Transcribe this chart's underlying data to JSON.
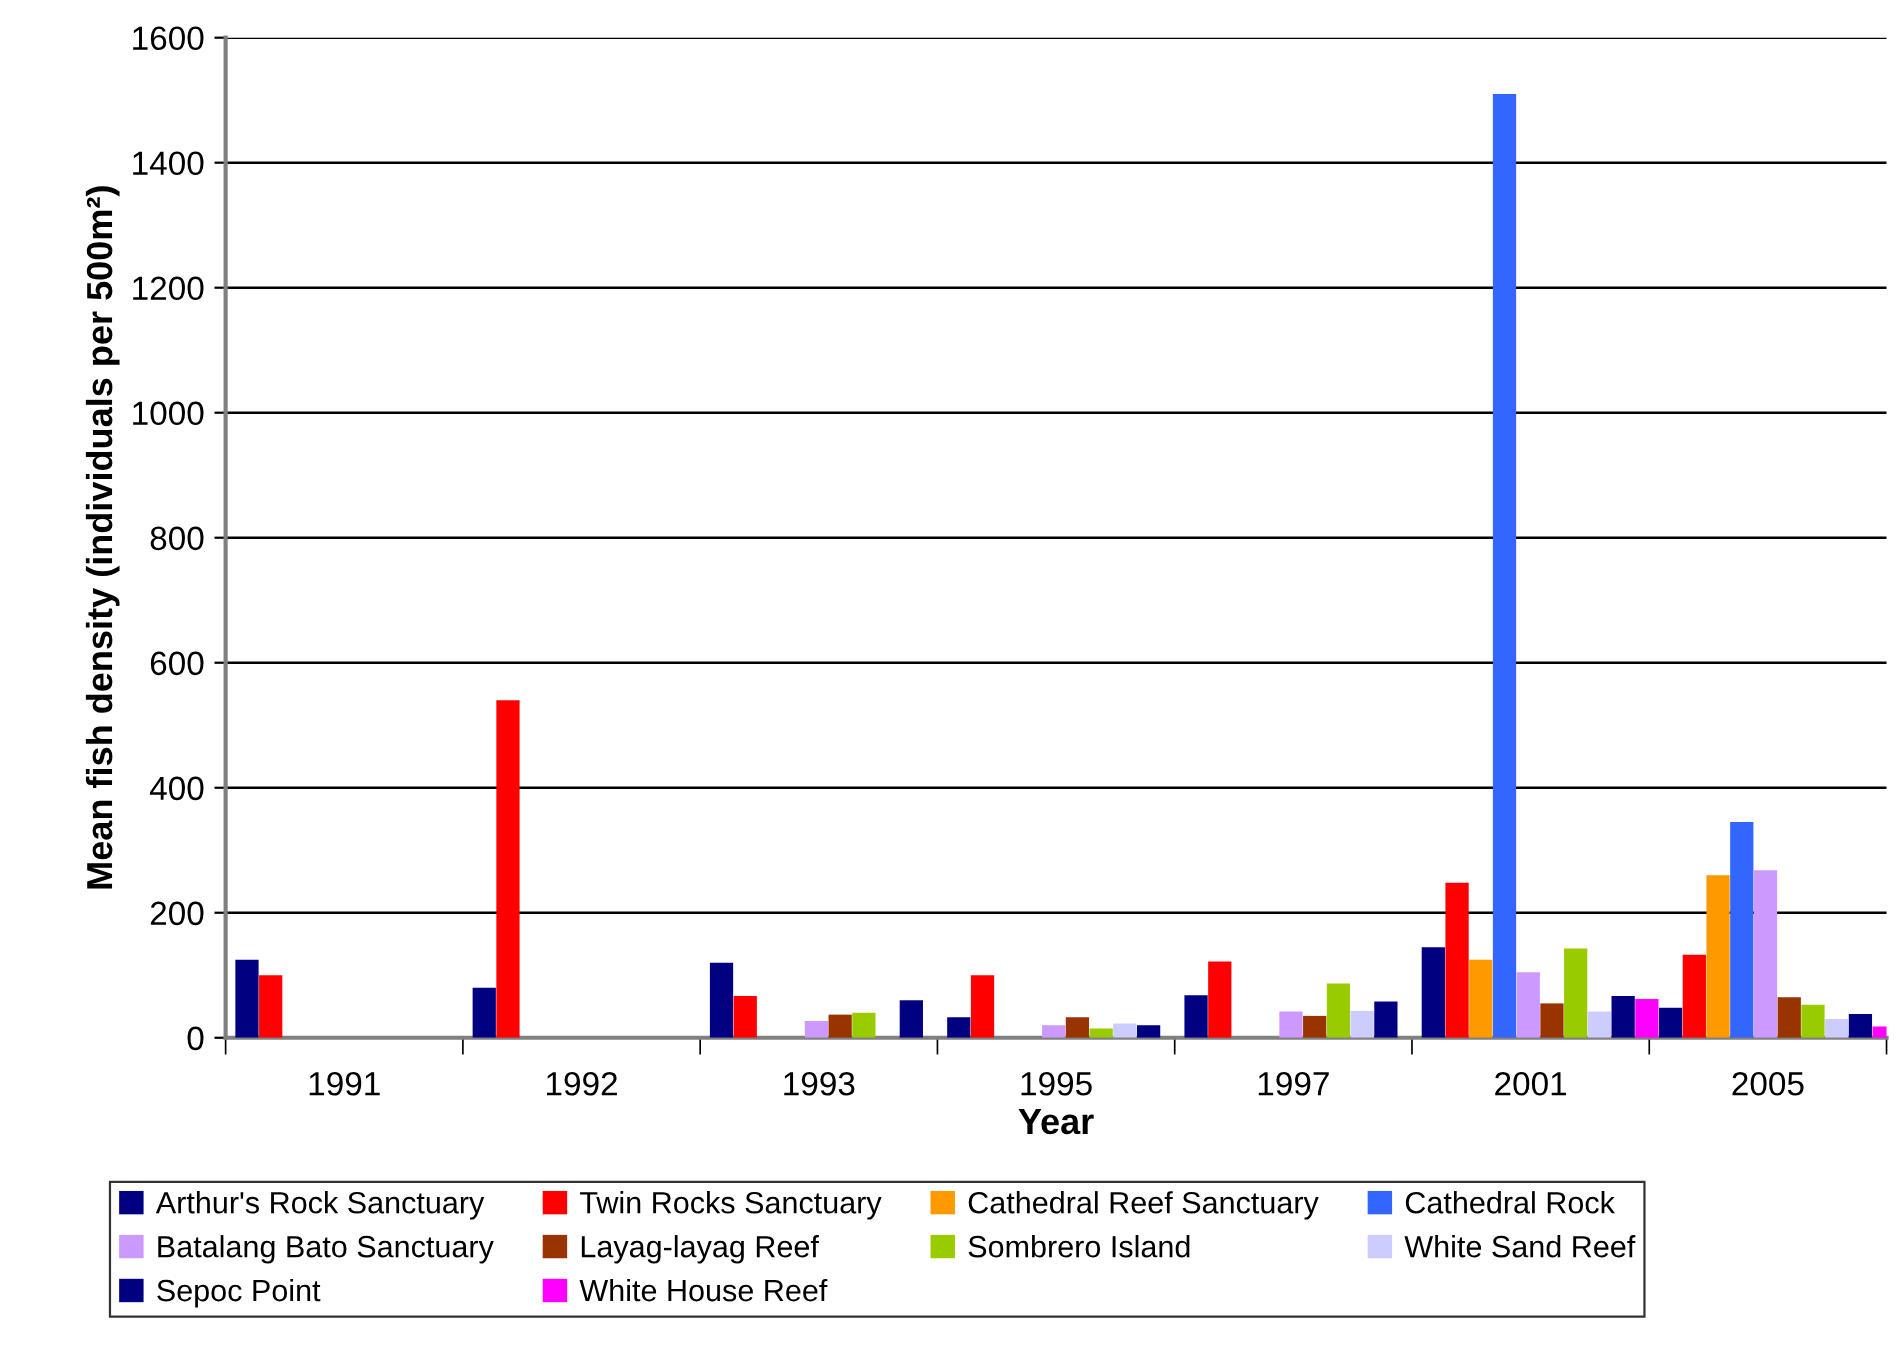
{
  "chart_data": {
    "type": "bar",
    "xlabel": "Year",
    "ylabel": "Mean fish density (individuals per 500m²)",
    "categories": [
      "1991",
      "1992",
      "1993",
      "1995",
      "1997",
      "2001",
      "2005"
    ],
    "ylim": [
      0,
      1600
    ],
    "yticks": [
      0,
      200,
      400,
      600,
      800,
      1000,
      1200,
      1400,
      1600
    ],
    "grid": "y",
    "legend": "bottom",
    "series": [
      {
        "name": "Arthur's Rock Sanctuary",
        "color": "#000080",
        "values": [
          125,
          80,
          120,
          33,
          68,
          145,
          48
        ]
      },
      {
        "name": "Twin Rocks Sanctuary",
        "color": "#ff0000",
        "values": [
          100,
          540,
          67,
          100,
          122,
          248,
          133
        ]
      },
      {
        "name": "Cathedral Reef Sanctuary",
        "color": "#ff9900",
        "values": [
          null,
          null,
          null,
          null,
          null,
          125,
          260
        ]
      },
      {
        "name": "Cathedral Rock",
        "color": "#3366ff",
        "values": [
          null,
          null,
          null,
          null,
          null,
          1510,
          345
        ]
      },
      {
        "name": "Batalang Bato Sanctuary",
        "color": "#cc99ff",
        "values": [
          null,
          null,
          27,
          20,
          42,
          105,
          268
        ]
      },
      {
        "name": "Layag-layag Reef",
        "color": "#993300",
        "values": [
          null,
          null,
          37,
          33,
          35,
          55,
          65
        ]
      },
      {
        "name": "Sombrero Island",
        "color": "#99cc00",
        "values": [
          null,
          null,
          40,
          15,
          87,
          143,
          53
        ]
      },
      {
        "name": "White Sand Reef",
        "color": "#ccccff",
        "values": [
          null,
          null,
          null,
          23,
          43,
          42,
          30
        ]
      },
      {
        "name": "Sepoc Point",
        "color": "#000080",
        "values": [
          null,
          null,
          60,
          20,
          58,
          67,
          38
        ]
      },
      {
        "name": "White House Reef",
        "color": "#ff00ff",
        "values": [
          null,
          null,
          null,
          null,
          null,
          62,
          18
        ]
      }
    ]
  }
}
